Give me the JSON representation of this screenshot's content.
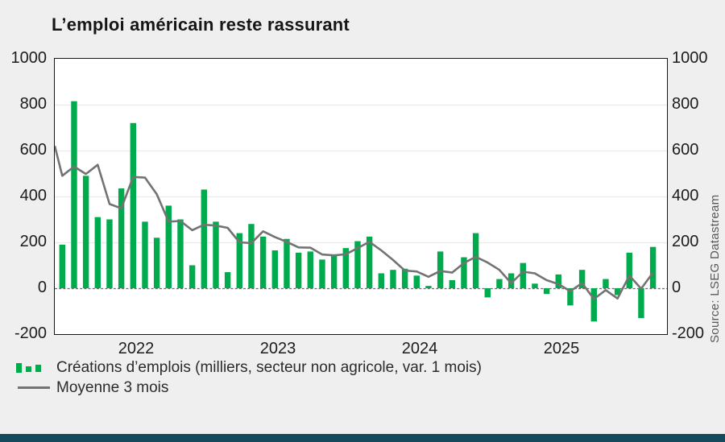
{
  "title": "L’emploi américain reste rassurant",
  "source": "Source: LSEG Datastream",
  "colors": {
    "bars": "#00ab4e",
    "line": "#737373",
    "background": "#efefef",
    "plot_background": "#ffffff",
    "grid": "#ebebeb",
    "zero_line": "#6b6b6b",
    "text": "#1c1c1c",
    "source_text": "#585858",
    "footer_bar": "#16495c"
  },
  "legend": [
    {
      "label": "Créations d’emplois (milliers, secteur non agricole, var. 1 mois)",
      "marker": "green-squares"
    },
    {
      "label": "Moyenne 3 mois",
      "marker": "gray-line"
    }
  ],
  "y_axis": {
    "min": -200,
    "max": 1000,
    "step": 200,
    "ticks": [
      1000,
      800,
      600,
      400,
      200,
      0,
      -200
    ]
  },
  "x_axis": {
    "year_labels": [
      "2022",
      "2023",
      "2024",
      "2025"
    ]
  },
  "chart_data": {
    "type": "bar",
    "title": "L’emploi américain reste rassurant",
    "ylabel": "",
    "xlabel": "",
    "ylim": [
      -200,
      1000
    ],
    "grid": "horizontal",
    "legend_position": "bottom-left",
    "months": [
      "2021-06",
      "2021-07",
      "2021-08",
      "2021-09",
      "2021-10",
      "2021-11",
      "2021-12",
      "2022-01",
      "2022-02",
      "2022-03",
      "2022-04",
      "2022-05",
      "2022-06",
      "2022-07",
      "2022-08",
      "2022-09",
      "2022-10",
      "2022-11",
      "2022-12",
      "2023-01",
      "2023-02",
      "2023-03",
      "2023-04",
      "2023-05",
      "2023-06",
      "2023-07",
      "2023-08",
      "2023-09",
      "2023-10",
      "2023-11",
      "2023-12",
      "2024-01",
      "2024-02",
      "2024-03",
      "2024-04",
      "2024-05",
      "2024-06",
      "2024-07",
      "2024-08",
      "2024-09",
      "2024-10",
      "2024-11",
      "2024-12",
      "2025-01",
      "2025-02",
      "2025-03",
      "2025-04",
      "2025-05",
      "2025-06",
      "2025-07",
      "2025-08"
    ],
    "series": [
      {
        "name": "Créations d’emplois (milliers, secteur non agricole, var. 1 mois)",
        "type": "bar",
        "values": [
          190,
          815,
          490,
          310,
          300,
          435,
          720,
          290,
          220,
          360,
          300,
          100,
          430,
          290,
          70,
          240,
          280,
          225,
          165,
          215,
          155,
          160,
          125,
          145,
          175,
          205,
          225,
          65,
          80,
          85,
          55,
          10,
          160,
          35,
          135,
          240,
          -40,
          40,
          65,
          110,
          20,
          -25,
          60,
          -75,
          80,
          -145,
          40,
          -30,
          155,
          -130,
          180
        ]
      },
      {
        "name": "Moyenne 3 mois",
        "type": "line",
        "edge_start_value": 620,
        "values": [
          490,
          530,
          498,
          538,
          367,
          348,
          485,
          482,
          410,
          290,
          293,
          253,
          277,
          273,
          263,
          200,
          197,
          248,
          223,
          202,
          178,
          177,
          147,
          143,
          148,
          175,
          202,
          165,
          123,
          77,
          73,
          50,
          75,
          68,
          110,
          137,
          112,
          80,
          22,
          72,
          65,
          35,
          18,
          -13,
          22,
          -47,
          -8,
          -45,
          55,
          -2,
          68
        ]
      }
    ]
  }
}
